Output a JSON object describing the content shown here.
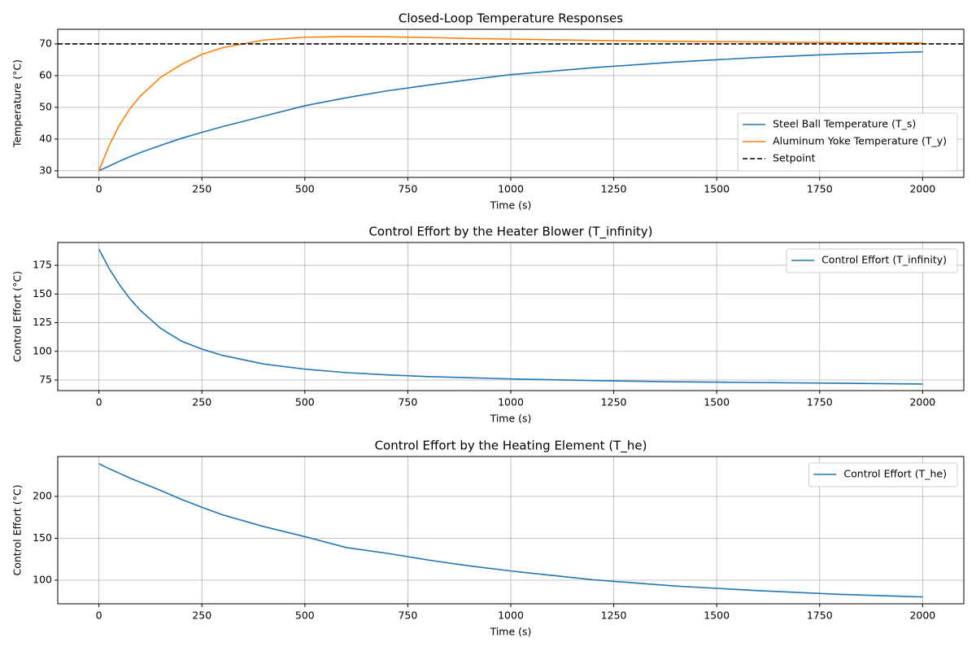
{
  "chart_data": [
    {
      "type": "line",
      "title": "Closed-Loop Temperature Responses",
      "xlabel": "Time (s)",
      "ylabel": "Temperature (°C)",
      "x": [
        0,
        25,
        50,
        75,
        100,
        150,
        200,
        250,
        300,
        400,
        500,
        600,
        700,
        800,
        900,
        1000,
        1200,
        1400,
        1600,
        1800,
        2000
      ],
      "series": [
        {
          "name": "Steel Ball Temperature (T_s)",
          "color": "#1f77b4",
          "values": [
            30,
            31.5,
            33,
            34.4,
            35.7,
            38,
            40.2,
            42.1,
            43.9,
            47.2,
            50.5,
            53,
            55.2,
            57,
            58.7,
            60.3,
            62.5,
            64.3,
            65.7,
            66.8,
            67.5
          ]
        },
        {
          "name": "Aluminum Yoke Temperature (T_y)",
          "color": "#ff7f0e",
          "values": [
            30,
            38,
            44.5,
            49.5,
            53.5,
            59.5,
            63.5,
            66.7,
            68.8,
            71.2,
            72.1,
            72.3,
            72.2,
            72,
            71.7,
            71.5,
            71.1,
            70.8,
            70.6,
            70.4,
            70.3
          ]
        }
      ],
      "reference": {
        "name": "Setpoint",
        "value": 70,
        "color": "#000000"
      },
      "xlim": [
        -100,
        2100
      ],
      "ylim": [
        27.9,
        74.6
      ],
      "xticks": [
        0,
        250,
        500,
        750,
        1000,
        1250,
        1500,
        1750,
        2000
      ],
      "yticks": [
        30,
        40,
        50,
        60,
        70
      ],
      "grid": true,
      "legend": "lower right"
    },
    {
      "type": "line",
      "title": "Control Effort by the Heater Blower (T_infinity)",
      "xlabel": "Time (s)",
      "ylabel": "Control Effort (°C)",
      "x": [
        0,
        25,
        50,
        75,
        100,
        150,
        200,
        250,
        300,
        400,
        500,
        600,
        700,
        800,
        900,
        1000,
        1200,
        1400,
        1600,
        1800,
        2000
      ],
      "series": [
        {
          "name": "Control Effort (T_infinity)",
          "color": "#1f77b4",
          "values": [
            189,
            172,
            158,
            146,
            136,
            120,
            109,
            102,
            96.5,
            89,
            84.5,
            81.5,
            79.5,
            78,
            77,
            76,
            74.5,
            73.5,
            72.8,
            72.2,
            71.5
          ]
        }
      ],
      "xlim": [
        -100,
        2100
      ],
      "ylim": [
        65.8,
        194.9
      ],
      "xticks": [
        0,
        250,
        500,
        750,
        1000,
        1250,
        1500,
        1750,
        2000
      ],
      "yticks": [
        75,
        100,
        125,
        150,
        175
      ],
      "grid": true,
      "legend": "upper right"
    },
    {
      "type": "line",
      "title": "Control Effort by the Heating Element (T_he)",
      "xlabel": "Time (s)",
      "ylabel": "Control Effort (°C)",
      "x": [
        0,
        25,
        50,
        75,
        100,
        150,
        200,
        250,
        300,
        400,
        500,
        600,
        700,
        800,
        900,
        1000,
        1200,
        1400,
        1600,
        1800,
        2000
      ],
      "series": [
        {
          "name": "Control Effort (T_he)",
          "color": "#1f77b4",
          "values": [
            239,
            233,
            227.5,
            222,
            217,
            207,
            196.5,
            187,
            178,
            164,
            152,
            139,
            132,
            124,
            117,
            111,
            100.5,
            93,
            87.5,
            83,
            80
          ]
        }
      ],
      "xlim": [
        -100,
        2100
      ],
      "ylim": [
        71.8,
        247.6
      ],
      "xticks": [
        0,
        250,
        500,
        750,
        1000,
        1250,
        1500,
        1750,
        2000
      ],
      "yticks": [
        100,
        150,
        200
      ],
      "grid": true,
      "legend": "upper right"
    }
  ]
}
